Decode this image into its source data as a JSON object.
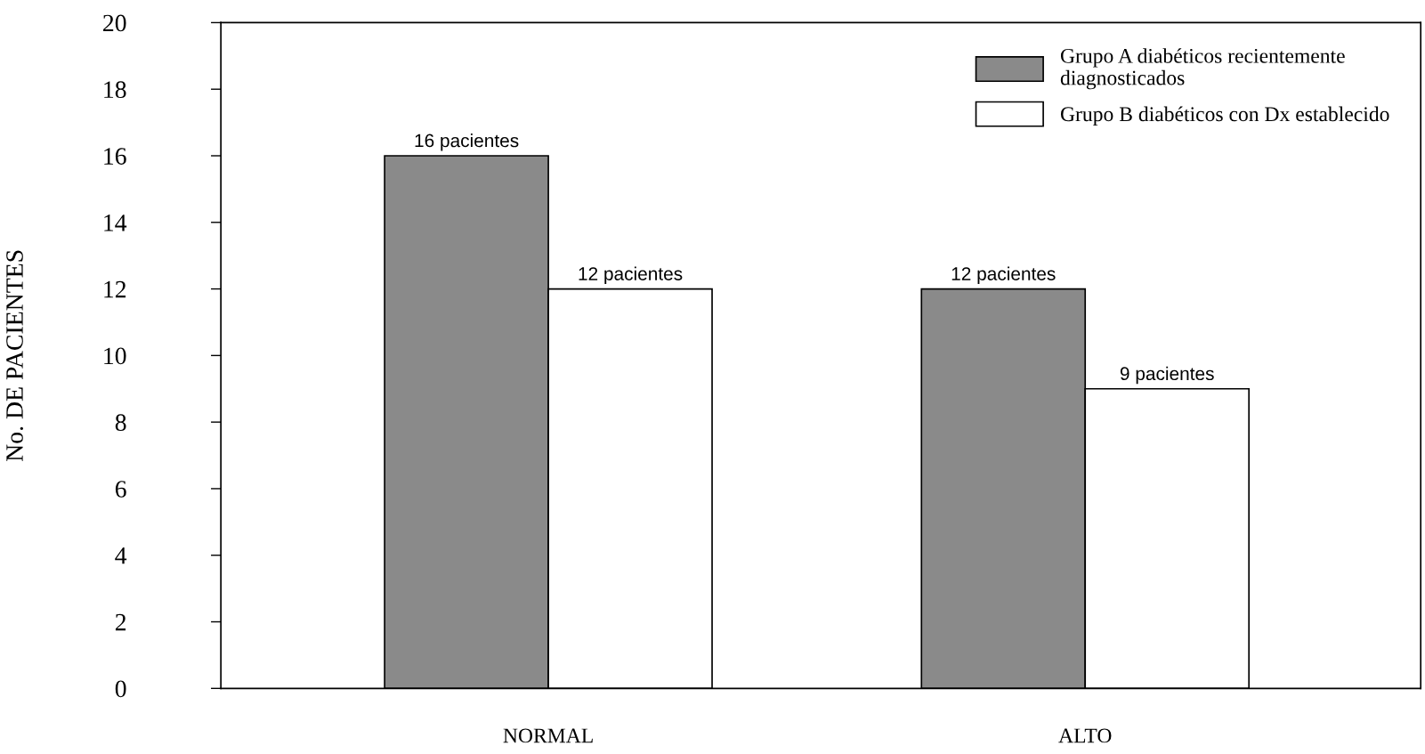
{
  "chart_data": {
    "type": "bar",
    "ylabel": "No. DE PACIENTES",
    "categories": [
      "NORMAL",
      "ALTO"
    ],
    "series": [
      {
        "name": "Grupo A diabéticos recientemente\ndiagnosticados",
        "color": "#8a8a8a",
        "values": [
          16,
          12
        ],
        "value_labels": [
          "16 pacientes",
          "12 pacientes"
        ]
      },
      {
        "name": "Grupo B diabéticos con Dx establecido",
        "color": "#ffffff",
        "values": [
          12,
          9
        ],
        "value_labels": [
          "12 pacientes",
          "9 pacientes"
        ]
      }
    ],
    "ylim": [
      0,
      20
    ],
    "yticks": [
      0,
      2,
      4,
      6,
      8,
      10,
      12,
      14,
      16,
      18,
      20
    ],
    "grid": false,
    "legend": "top right"
  }
}
